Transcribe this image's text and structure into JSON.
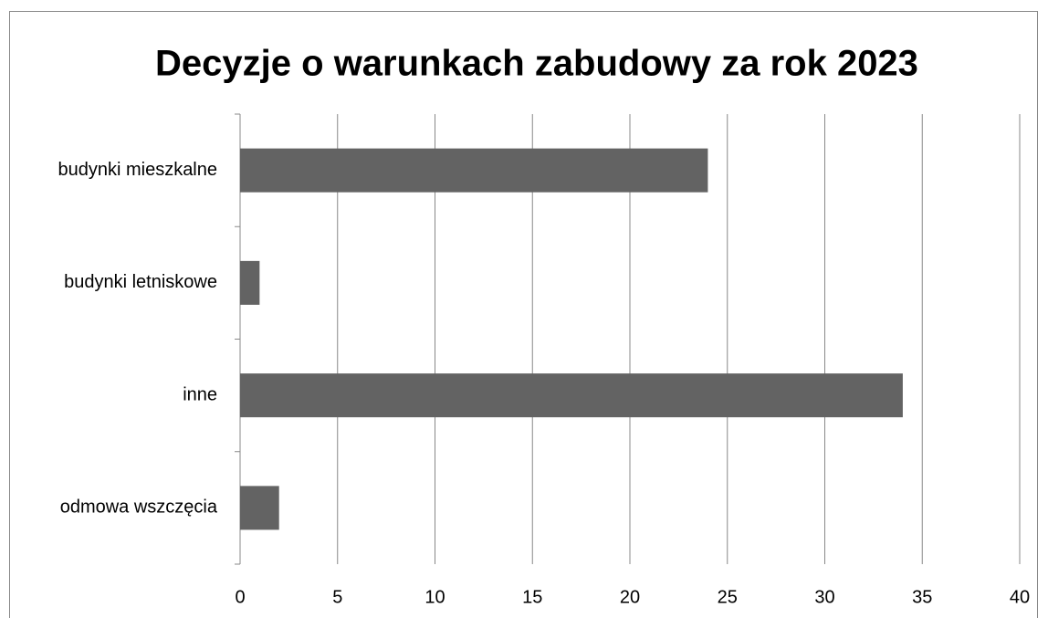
{
  "chart_data": {
    "type": "bar",
    "orientation": "horizontal",
    "title": "Decyzje o warunkach zabudowy za rok 2023",
    "categories": [
      "budynki mieszkalne",
      "budynki letniskowe",
      "inne",
      "odmowa wszczęcia"
    ],
    "values": [
      24,
      1,
      34,
      2
    ],
    "color": "#636363",
    "xlim": [
      0,
      40
    ],
    "xticks": [
      0,
      5,
      10,
      15,
      20,
      25,
      30,
      35,
      40
    ],
    "grid": true
  }
}
